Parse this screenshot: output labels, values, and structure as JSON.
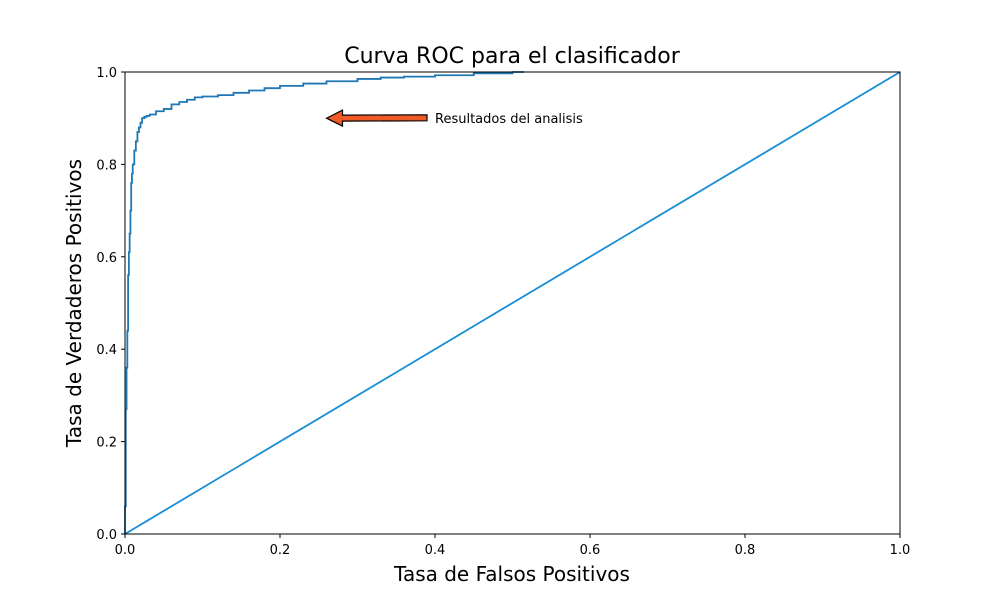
{
  "chart_data": {
    "type": "line",
    "title": "Curva ROC para el clasificador",
    "xlabel": "Tasa de Falsos Positivos",
    "ylabel": "Tasa de Verdaderos Positivos",
    "xlim": [
      0.0,
      1.0
    ],
    "ylim": [
      0.0,
      1.0
    ],
    "xticks": [
      0.0,
      0.2,
      0.4,
      0.6,
      0.8,
      1.0
    ],
    "yticks": [
      0.0,
      0.2,
      0.4,
      0.6,
      0.8,
      1.0
    ],
    "xtick_labels": [
      "0.0",
      "0.2",
      "0.4",
      "0.6",
      "0.8",
      "1.0"
    ],
    "ytick_labels": [
      "0.0",
      "0.2",
      "0.4",
      "0.6",
      "0.8",
      "1.0"
    ],
    "grid": false,
    "series": [
      {
        "color": "#1f77b4",
        "step": true,
        "x": [
          0.0,
          0.0,
          0.001,
          0.002,
          0.003,
          0.004,
          0.005,
          0.006,
          0.007,
          0.008,
          0.009,
          0.01,
          0.012,
          0.014,
          0.016,
          0.018,
          0.02,
          0.022,
          0.025,
          0.028,
          0.032,
          0.04,
          0.05,
          0.06,
          0.07,
          0.08,
          0.09,
          0.1,
          0.12,
          0.14,
          0.16,
          0.18,
          0.2,
          0.23,
          0.26,
          0.3,
          0.33,
          0.36,
          0.4,
          0.45,
          0.5,
          0.515
        ],
        "y": [
          0.0,
          0.06,
          0.27,
          0.36,
          0.44,
          0.56,
          0.61,
          0.65,
          0.7,
          0.76,
          0.78,
          0.8,
          0.83,
          0.85,
          0.87,
          0.88,
          0.89,
          0.9,
          0.903,
          0.905,
          0.908,
          0.915,
          0.92,
          0.93,
          0.935,
          0.94,
          0.945,
          0.947,
          0.95,
          0.955,
          0.96,
          0.965,
          0.97,
          0.975,
          0.98,
          0.985,
          0.988,
          0.99,
          0.993,
          0.997,
          1.0,
          1.0
        ]
      },
      {
        "color": "#1a8fd6",
        "x": [
          0.0,
          1.0
        ],
        "y": [
          0.0,
          1.0
        ]
      }
    ],
    "annotations": [
      {
        "text": "Resultados del analisis",
        "xy": [
          0.26,
          0.9
        ],
        "xytext": [
          0.4,
          0.89
        ],
        "arrow_color": "#f05a28"
      }
    ]
  }
}
